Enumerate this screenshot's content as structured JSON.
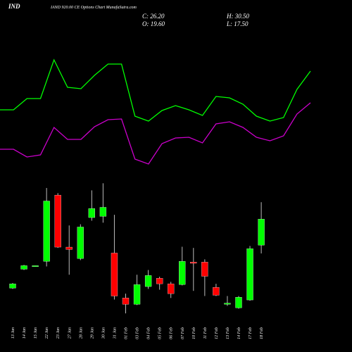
{
  "header": {
    "symbol": "IND",
    "title": "IAND 920.00 CE Options  Chart MunafaSutra.com"
  },
  "ohlc": {
    "close": "C: 26.20",
    "high": "H: 30.50",
    "open": "O: 19.60",
    "low": "L: 17.50"
  },
  "chart_data": [
    {
      "type": "line",
      "ylim": [
        0,
        250
      ],
      "series": [
        {
          "color": "#00ff00",
          "values": [
            94,
            94,
            110,
            110,
            165,
            126,
            124,
            143,
            159,
            159,
            85,
            78,
            93,
            100,
            94,
            86,
            113,
            111,
            102,
            85,
            78,
            83,
            123,
            149
          ]
        },
        {
          "color": "#cc00cc",
          "values": [
            38,
            38,
            27,
            30,
            69,
            52,
            52,
            70,
            80,
            81,
            24,
            17,
            46,
            54,
            55,
            47,
            74,
            77,
            69,
            55,
            50,
            57,
            88,
            104
          ]
        }
      ]
    },
    {
      "type": "candlestick",
      "ylim": [
        0,
        40
      ],
      "up_color": "#00ff00",
      "down_color": "#ff0000",
      "categories": [
        "13 Jan",
        "14 Jan",
        "15 Jan",
        "22 Jan",
        "23 Jan",
        "27 Jan",
        "28 Jan",
        "29 Jan",
        "30 Jan",
        "31 Jan",
        "01 Feb",
        "03 Feb",
        "04 Feb",
        "05 Feb",
        "06 Feb",
        "07 Feb",
        "10 Feb",
        "11 Feb",
        "12 Feb",
        "13 Feb",
        "14 Feb",
        "17 Feb",
        "18 Feb"
      ],
      "open": [
        8.7,
        13.5,
        14.2,
        15.5,
        32.3,
        19.1,
        16.2,
        26.6,
        26.9,
        17.6,
        6.2,
        4.6,
        9.1,
        11.2,
        9.8,
        9.6,
        15.3,
        15.3,
        8.9,
        4.6,
        3.7,
        5.7,
        19.6
      ],
      "high": [
        10.0,
        14.6,
        14.4,
        34.1,
        32.8,
        24.6,
        24.9,
        33.5,
        35.3,
        27.3,
        7.3,
        12.1,
        13.3,
        11.6,
        10.3,
        19.2,
        18.9,
        16.0,
        9.8,
        6.7,
        6.7,
        19.4,
        30.5
      ],
      "low": [
        8.5,
        13.3,
        14.2,
        14.2,
        18.9,
        12.1,
        15.8,
        25.8,
        25.3,
        5.8,
        2.3,
        4.4,
        8.5,
        8.3,
        6.2,
        9.4,
        8.0,
        6.7,
        6.7,
        4.2,
        3.5,
        5.5,
        17.5
      ],
      "close": [
        9.8,
        14.4,
        14.4,
        30.8,
        19.1,
        18.5,
        24.2,
        28.9,
        29.2,
        6.7,
        4.6,
        9.6,
        11.9,
        9.8,
        7.3,
        15.5,
        15.0,
        11.7,
        6.9,
        4.9,
        6.4,
        18.7,
        26.2
      ]
    }
  ]
}
